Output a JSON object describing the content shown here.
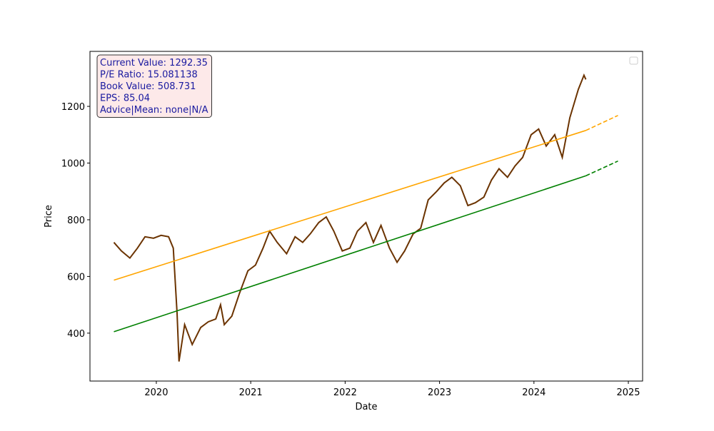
{
  "chart_data": {
    "type": "line",
    "xlabel": "Date",
    "ylabel": "Price",
    "xlim": [
      2019.297,
      2025.151
    ],
    "ylim": [
      231,
      1394
    ],
    "xticks": [
      2020,
      2021,
      2022,
      2023,
      2024,
      2025
    ],
    "yticks": [
      400,
      600,
      800,
      1000,
      1200
    ],
    "annotation": [
      "Current Value: 1292.35",
      "P/E Ratio: 15.081138",
      "Book Value: 508.731",
      "EPS: 85.04",
      "Advice|Mean: none|N/A"
    ],
    "series": [
      {
        "color": "#6b3300",
        "linestyle": "solid",
        "x": [
          2019.55,
          2019.63,
          2019.72,
          2019.8,
          2019.88,
          2019.97,
          2020.05,
          2020.13,
          2020.18,
          2020.22,
          2020.24,
          2020.3,
          2020.38,
          2020.47,
          2020.55,
          2020.63,
          2020.68,
          2020.72,
          2020.8,
          2020.88,
          2020.97,
          2021.05,
          2021.13,
          2021.2,
          2021.28,
          2021.38,
          2021.47,
          2021.55,
          2021.63,
          2021.72,
          2021.8,
          2021.88,
          2021.97,
          2022.05,
          2022.13,
          2022.22,
          2022.3,
          2022.38,
          2022.47,
          2022.55,
          2022.63,
          2022.72,
          2022.8,
          2022.88,
          2022.97,
          2023.05,
          2023.13,
          2023.22,
          2023.3,
          2023.38,
          2023.47,
          2023.55,
          2023.63,
          2023.72,
          2023.8,
          2023.88,
          2023.97,
          2024.05,
          2024.13,
          2024.22,
          2024.3,
          2024.38,
          2024.47,
          2024.53,
          2024.55
        ],
        "values": [
          720,
          690,
          665,
          700,
          740,
          735,
          745,
          740,
          700,
          470,
          300,
          430,
          360,
          420,
          440,
          450,
          500,
          430,
          460,
          540,
          620,
          640,
          700,
          760,
          720,
          680,
          740,
          720,
          750,
          790,
          810,
          760,
          690,
          700,
          760,
          790,
          720,
          780,
          700,
          650,
          690,
          750,
          770,
          870,
          900,
          930,
          950,
          920,
          850,
          860,
          880,
          940,
          980,
          950,
          990,
          1020,
          1100,
          1120,
          1060,
          1100,
          1020,
          1160,
          1260,
          1310,
          1295
        ]
      },
      {
        "color": "orange",
        "linestyle": "solid",
        "x": [
          2019.55,
          2024.55
        ],
        "values": [
          587,
          1115
        ]
      },
      {
        "color": "orange",
        "linestyle": "dashed",
        "x": [
          2024.55,
          2024.89
        ],
        "values": [
          1115,
          1168
        ]
      },
      {
        "color": "green",
        "linestyle": "solid",
        "x": [
          2019.55,
          2024.55
        ],
        "values": [
          405,
          955
        ]
      },
      {
        "color": "green",
        "linestyle": "dashed",
        "x": [
          2024.55,
          2024.89
        ],
        "values": [
          955,
          1007
        ]
      }
    ]
  }
}
